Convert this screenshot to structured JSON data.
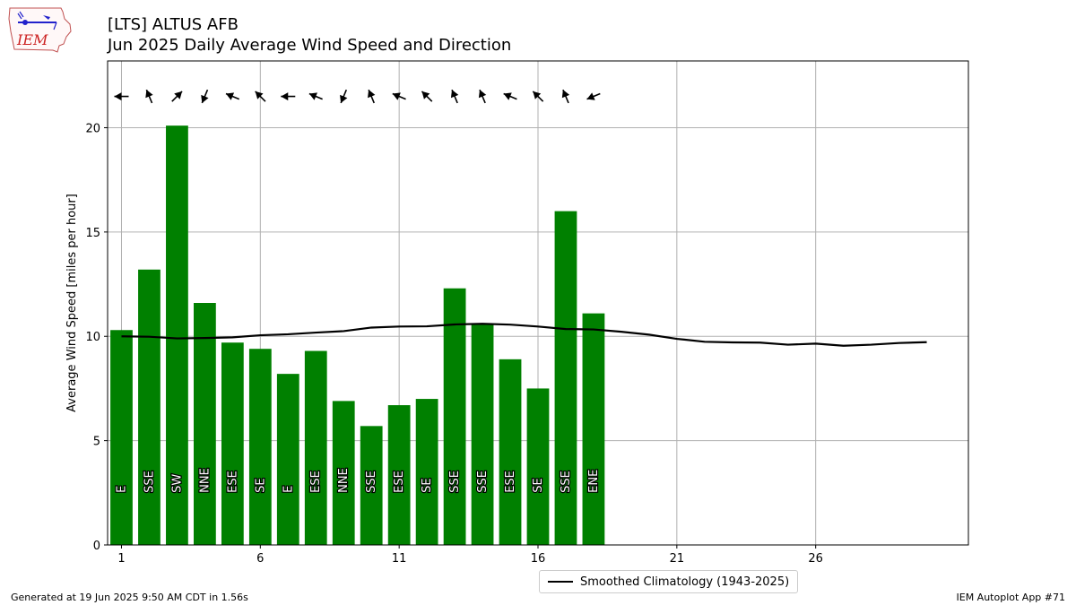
{
  "header": {
    "title_line1": "[LTS] ALTUS AFB",
    "title_line2": "Jun 2025 Daily Average Wind Speed and Direction"
  },
  "logo": {
    "text": "IEM"
  },
  "footer": {
    "left": "Generated at 19 Jun 2025 9:50 AM CDT in 1.56s",
    "right": "IEM Autoplot App #71"
  },
  "colors": {
    "bars": "#008000",
    "climatology": "#000000",
    "grid": "#b0b0b0"
  },
  "chart_data": {
    "type": "bar",
    "ylabel": "Average Wind Speed [miles per hour]",
    "xlabel": "",
    "xlim": [
      0.5,
      31.5
    ],
    "ylim": [
      0,
      23.2
    ],
    "x_ticks": [
      1,
      6,
      11,
      16,
      21,
      26
    ],
    "y_ticks": [
      0,
      5,
      10,
      15,
      20
    ],
    "grid": true,
    "legend_position": "bottom-center",
    "series": [
      {
        "type": "bar",
        "days": [
          1,
          2,
          3,
          4,
          5,
          6,
          7,
          8,
          9,
          10,
          11,
          12,
          13,
          14,
          15,
          16,
          17,
          18
        ],
        "values": [
          10.3,
          13.2,
          20.1,
          11.6,
          9.7,
          9.4,
          8.2,
          9.3,
          6.9,
          5.7,
          6.7,
          7.0,
          12.3,
          10.6,
          8.9,
          7.5,
          16.0,
          11.1
        ],
        "direction_labels": [
          "E",
          "SSE",
          "SW",
          "NNE",
          "ESE",
          "SE",
          "E",
          "ESE",
          "NNE",
          "SSE",
          "ESE",
          "SE",
          "SSE",
          "SSE",
          "ESE",
          "SE",
          "SSE",
          "ENE"
        ]
      },
      {
        "type": "line",
        "name": "Smoothed Climatology (1943-2025)",
        "x": [
          1,
          2,
          3,
          4,
          5,
          6,
          7,
          8,
          9,
          10,
          11,
          12,
          13,
          14,
          15,
          16,
          17,
          18,
          19,
          20,
          21,
          22,
          23,
          24,
          25,
          26,
          27,
          28,
          29,
          30
        ],
        "values": [
          10.0,
          9.98,
          9.9,
          9.92,
          9.95,
          10.05,
          10.1,
          10.18,
          10.25,
          10.42,
          10.47,
          10.48,
          10.57,
          10.6,
          10.56,
          10.47,
          10.35,
          10.33,
          10.22,
          10.08,
          9.88,
          9.74,
          9.71,
          9.7,
          9.6,
          9.65,
          9.55,
          9.6,
          9.68,
          9.72
        ]
      }
    ]
  }
}
